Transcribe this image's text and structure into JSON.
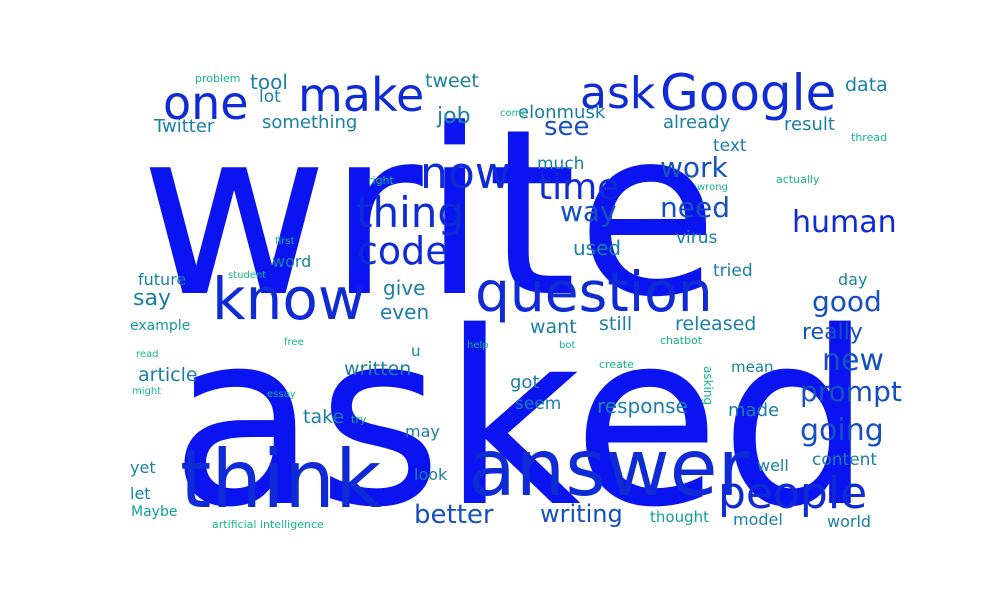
{
  "colors": {
    "blue": "#0a14f0",
    "navy": "#0f2bd6",
    "steel": "#1550c0",
    "teal": "#1a7fa8",
    "cyan": "#119e9a",
    "green": "#14b48c"
  },
  "words": [
    {
      "text": "write",
      "color": "blue"
    },
    {
      "text": "asked",
      "color": "blue"
    },
    {
      "text": "answer",
      "color": "navy"
    },
    {
      "text": "think",
      "color": "navy"
    },
    {
      "text": "question",
      "color": "navy"
    },
    {
      "text": "know",
      "color": "navy"
    },
    {
      "text": "people",
      "color": "navy"
    },
    {
      "text": "Google",
      "color": "navy"
    },
    {
      "text": "make",
      "color": "navy"
    },
    {
      "text": "one",
      "color": "navy"
    },
    {
      "text": "ask",
      "color": "navy"
    },
    {
      "text": "thing",
      "color": "navy"
    },
    {
      "text": "now",
      "color": "navy"
    },
    {
      "text": "code",
      "color": "navy"
    },
    {
      "text": "time",
      "color": "navy"
    },
    {
      "text": "human",
      "color": "navy"
    },
    {
      "text": "better",
      "color": "steel"
    },
    {
      "text": "going",
      "color": "steel"
    },
    {
      "text": "new",
      "color": "steel"
    },
    {
      "text": "good",
      "color": "steel"
    },
    {
      "text": "prompt",
      "color": "steel"
    },
    {
      "text": "need",
      "color": "steel"
    },
    {
      "text": "work",
      "color": "steel"
    },
    {
      "text": "way",
      "color": "steel"
    },
    {
      "text": "writing",
      "color": "steel"
    },
    {
      "text": "see",
      "color": "steel"
    },
    {
      "text": "really",
      "color": "steel"
    },
    {
      "text": "response",
      "color": "teal"
    },
    {
      "text": "job",
      "color": "teal"
    },
    {
      "text": "say",
      "color": "teal"
    },
    {
      "text": "even",
      "color": "teal"
    },
    {
      "text": "give",
      "color": "teal"
    },
    {
      "text": "used",
      "color": "teal"
    },
    {
      "text": "released",
      "color": "teal"
    },
    {
      "text": "still",
      "color": "teal"
    },
    {
      "text": "want",
      "color": "teal"
    },
    {
      "text": "written",
      "color": "teal"
    },
    {
      "text": "article",
      "color": "teal"
    },
    {
      "text": "take",
      "color": "teal"
    },
    {
      "text": "made",
      "color": "teal"
    },
    {
      "text": "got",
      "color": "teal"
    },
    {
      "text": "seem",
      "color": "teal"
    },
    {
      "text": "result",
      "color": "teal"
    },
    {
      "text": "tweet",
      "color": "teal"
    },
    {
      "text": "tool",
      "color": "teal"
    },
    {
      "text": "elonmusk",
      "color": "teal"
    },
    {
      "text": "already",
      "color": "teal"
    },
    {
      "text": "data",
      "color": "teal"
    },
    {
      "text": "Twitter",
      "color": "teal"
    },
    {
      "text": "something",
      "color": "teal"
    },
    {
      "text": "lot",
      "color": "teal"
    },
    {
      "text": "text",
      "color": "teal"
    },
    {
      "text": "much",
      "color": "teal"
    },
    {
      "text": "virus",
      "color": "teal"
    },
    {
      "text": "tried",
      "color": "teal"
    },
    {
      "text": "future",
      "color": "teal"
    },
    {
      "text": "word",
      "color": "teal"
    },
    {
      "text": "day",
      "color": "teal"
    },
    {
      "text": "content",
      "color": "teal"
    },
    {
      "text": "well",
      "color": "teal"
    },
    {
      "text": "model",
      "color": "teal"
    },
    {
      "text": "world",
      "color": "teal"
    },
    {
      "text": "thought",
      "color": "cyan"
    },
    {
      "text": "may",
      "color": "teal"
    },
    {
      "text": "look",
      "color": "teal"
    },
    {
      "text": "yet",
      "color": "teal"
    },
    {
      "text": "let",
      "color": "teal"
    },
    {
      "text": "Maybe",
      "color": "cyan"
    },
    {
      "text": "mean",
      "color": "teal"
    },
    {
      "text": "example",
      "color": "cyan"
    },
    {
      "text": "u",
      "color": "teal"
    },
    {
      "text": "problem",
      "color": "green"
    },
    {
      "text": "come",
      "color": "green"
    },
    {
      "text": "thread",
      "color": "green"
    },
    {
      "text": "right",
      "color": "green"
    },
    {
      "text": "wrong",
      "color": "green"
    },
    {
      "text": "actually",
      "color": "green"
    },
    {
      "text": "first",
      "color": "green"
    },
    {
      "text": "student",
      "color": "green"
    },
    {
      "text": "free",
      "color": "green"
    },
    {
      "text": "help",
      "color": "green"
    },
    {
      "text": "bot",
      "color": "green"
    },
    {
      "text": "chatbot",
      "color": "green"
    },
    {
      "text": "read",
      "color": "green"
    },
    {
      "text": "create",
      "color": "green"
    },
    {
      "text": "asking",
      "color": "green"
    },
    {
      "text": "might",
      "color": "green"
    },
    {
      "text": "essay",
      "color": "green"
    },
    {
      "text": "try",
      "color": "green"
    },
    {
      "text": "artificial intelligence",
      "color": "green"
    }
  ]
}
